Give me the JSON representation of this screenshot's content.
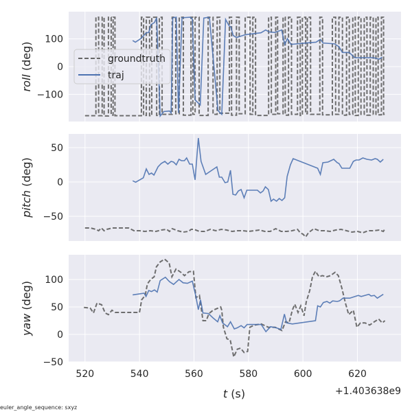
{
  "chart_data": [
    {
      "type": "line",
      "ylabel_var": "roll",
      "ylabel_unit": "(deg)",
      "xlim": [
        514,
        636
      ],
      "ylim": [
        -198,
        198
      ],
      "yticks": [
        -100,
        0,
        100
      ],
      "ytick_labels": [
        "−100",
        "0",
        "100"
      ],
      "grid": true,
      "legend": {
        "placement": "center-left",
        "entries": [
          "groundtruth",
          "traj"
        ]
      },
      "series": [
        {
          "name": "groundtruth",
          "style": "dashed",
          "color": "#666666",
          "drawstyle": "steps-post",
          "x": [
            520,
            524,
            525,
            526.3,
            527,
            528.6,
            529.6,
            530.3,
            531,
            540.7,
            541.5,
            542.5,
            543.7,
            544.5,
            546.3,
            547.3,
            548.3,
            552,
            553.3,
            554.6,
            556.1,
            558.9,
            559.6,
            560.4,
            561.9,
            565.2,
            567,
            568.5,
            569.5,
            573,
            573.8,
            575.6,
            576.6,
            578.8,
            580.6,
            581.6,
            582.6,
            587.4,
            588.4,
            590,
            590.7,
            592.7,
            593.5,
            594.7,
            595.8,
            598,
            599,
            599.8,
            601,
            601.6,
            602.8,
            606.2,
            607.2,
            610.8,
            612,
            613.2,
            614.5,
            616,
            617,
            618.3,
            619.2,
            620.3,
            621.3,
            622.5,
            623.5,
            624.7,
            625.8,
            626.8,
            627.6,
            628.8,
            629.6,
            630
          ],
          "y": [
            -177,
            178,
            -177,
            178,
            -178,
            178,
            -175,
            178,
            -177,
            178,
            -176,
            178,
            -177,
            178,
            -176,
            178,
            -172,
            178,
            -170,
            178,
            -175,
            178,
            -172,
            178,
            -176,
            178,
            -172,
            178,
            -168,
            178,
            -175,
            178,
            -170,
            178,
            -172,
            178,
            -176,
            178,
            -172,
            178,
            -170,
            178,
            -175,
            178,
            -172,
            178,
            -176,
            178,
            -170,
            178,
            -172,
            178,
            -174,
            178,
            -172,
            178,
            -175,
            178,
            -172,
            178,
            -176,
            178,
            -172,
            178,
            -175,
            178,
            -172,
            178,
            -174,
            178,
            -172,
            -172
          ]
        },
        {
          "name": "traj",
          "style": "solid",
          "color": "#4C72B0",
          "x": [
            537.5,
            538.5,
            540.5,
            542.5,
            543.4,
            544.2,
            545.5,
            546.3,
            547.6,
            548.9,
            551,
            551.6,
            552.2,
            553.5,
            554.3,
            555.6,
            558.6,
            559.4,
            560.4,
            562.3,
            563.6,
            565.3,
            565.7,
            568.8,
            570.2,
            571.6,
            572.9,
            573.5,
            574.4,
            575.6,
            577.9,
            578.8,
            584.6,
            586.3,
            587.6,
            589.7,
            592.2,
            593.3,
            594.3,
            595.6,
            599.8,
            604.8,
            606.4,
            607.4,
            611.6,
            613.2,
            614.5,
            617,
            619,
            625.9,
            628,
            629.1
          ],
          "y": [
            94,
            88,
            101,
            122,
            123,
            151,
            159,
            176,
            -178,
            -162,
            -160,
            -167,
            176,
            178,
            -167,
            176,
            178,
            172,
            -120,
            -138,
            175,
            178,
            174,
            -158,
            -172,
            170,
            147,
            143,
            112,
            105,
            112,
            115,
            122,
            132,
            125,
            123,
            132,
            80,
            101,
            80,
            84,
            88,
            98,
            85,
            82,
            72,
            51,
            51,
            32,
            32,
            27,
            34
          ]
        }
      ]
    },
    {
      "type": "line",
      "ylabel_var": "pitch",
      "ylabel_unit": "(deg)",
      "xlim": [
        514,
        636
      ],
      "ylim": [
        -86,
        70
      ],
      "yticks": [
        -50,
        0,
        50
      ],
      "ytick_labels": [
        "−50",
        "0",
        "50"
      ],
      "grid": true,
      "series": [
        {
          "name": "groundtruth",
          "style": "dashed",
          "color": "#666666",
          "x": [
            520,
            522,
            524,
            525,
            526,
            527,
            528,
            530,
            532,
            534,
            536,
            537,
            538,
            540,
            542,
            544,
            546,
            548,
            550,
            551,
            552,
            554,
            556,
            558,
            559,
            560,
            562,
            564,
            566,
            568,
            570,
            572,
            574,
            576,
            578,
            580,
            582,
            584,
            586,
            588,
            590,
            592,
            594,
            596,
            598,
            599,
            600,
            601,
            602,
            603,
            604,
            606,
            608,
            610,
            612,
            614,
            616,
            618,
            620,
            622,
            624,
            626,
            628,
            629.5,
            630
          ],
          "y": [
            -67,
            -67,
            -69,
            -71,
            -67,
            -71,
            -69,
            -67,
            -67,
            -67,
            -67,
            -69,
            -71,
            -71,
            -72,
            -71,
            -72,
            -70,
            -69,
            -72,
            -68,
            -71,
            -73,
            -72,
            -69,
            -69,
            -72,
            -72,
            -69,
            -71,
            -69,
            -70,
            -72,
            -71,
            -71,
            -72,
            -71,
            -70,
            -72,
            -72,
            -68,
            -72,
            -72,
            -71,
            -69,
            -74,
            -76,
            -80,
            -74,
            -71,
            -68,
            -71,
            -71,
            -72,
            -70,
            -69,
            -71,
            -73,
            -72,
            -74,
            -71,
            -71,
            -70,
            -72,
            -69
          ]
        },
        {
          "name": "traj",
          "style": "solid",
          "color": "#4C72B0",
          "x": [
            537.5,
            538.6,
            541.4,
            542.5,
            543.5,
            544.4,
            545.3,
            546.8,
            548,
            549.3,
            550.4,
            551.6,
            552.5,
            553.5,
            554.5,
            555.4,
            556.5,
            557.3,
            558.4,
            559.4,
            560.4,
            561.6,
            562.6,
            564.3,
            568.4,
            569.3,
            570.2,
            571.4,
            572.4,
            573.4,
            574.3,
            575.3,
            576.3,
            577.3,
            578.4,
            579.4,
            583.3,
            584.4,
            585.4,
            586.2,
            587.3,
            588.3,
            589.2,
            590.3,
            591.3,
            592.3,
            593.3,
            594.2,
            595.4,
            596.4,
            605.4,
            606.4,
            607.3,
            609.2,
            611.3,
            612.6,
            613.2,
            614.3,
            617.2,
            618.5,
            619.5,
            620.6,
            622,
            623.5,
            625.2,
            626.5,
            627.3,
            628.4,
            629.5
          ],
          "y": [
            1.7,
            -0.3,
            6,
            19,
            11,
            13,
            10,
            22,
            27,
            30,
            26,
            30,
            29,
            25,
            33,
            31,
            31,
            35,
            26,
            26,
            3,
            64,
            30,
            11,
            22,
            7,
            7,
            -1,
            0,
            17,
            -18,
            -19,
            -13,
            -11,
            -23,
            -12,
            -12,
            -16,
            -13,
            -7,
            -11,
            -28,
            -25,
            -28,
            -24,
            -27,
            -23,
            8,
            25,
            34,
            20,
            11,
            28,
            29,
            33,
            28,
            27,
            20,
            20,
            30,
            32,
            32,
            35,
            33,
            32,
            34,
            33,
            29,
            33
          ]
        }
      ]
    },
    {
      "type": "line",
      "ylabel_var": "yaw",
      "ylabel_unit": "(deg)",
      "xlabel_var": "t",
      "xlabel_unit": "(s)",
      "x_offset_label": "+1.403638e9",
      "xlim": [
        514,
        636
      ],
      "ylim": [
        -50,
        145
      ],
      "xticks": [
        520,
        540,
        560,
        580,
        600,
        620
      ],
      "xtick_labels": [
        "520",
        "540",
        "560",
        "580",
        "600",
        "620"
      ],
      "yticks": [
        -50,
        0,
        50,
        100
      ],
      "ytick_labels": [
        "−50",
        "0",
        "50",
        "100"
      ],
      "grid": true,
      "series": [
        {
          "name": "groundtruth",
          "style": "dashed",
          "color": "#666666",
          "x": [
            519.6,
            521.9,
            523.1,
            524.4,
            526.1,
            527.4,
            528.6,
            529.9,
            531.1,
            540,
            540.8,
            542.1,
            542.9,
            544.1,
            545.4,
            546.2,
            547.6,
            549.2,
            550.9,
            551.9,
            553.4,
            555.2,
            556.5,
            558.1,
            559.8,
            560.7,
            562,
            563.3,
            564.5,
            565.5,
            567,
            569.8,
            570.2,
            570.8,
            572.1,
            573.3,
            574.6,
            575.9,
            577.1,
            578.4,
            579.7,
            580.5,
            582.2,
            584.7,
            587.3,
            589.8,
            592.3,
            593.6,
            594.9,
            596.1,
            597,
            598.2,
            599.2,
            600.4,
            601.2,
            602.5,
            603.5,
            604.6,
            605.9,
            607.1,
            608.8,
            610.1,
            611.8,
            613,
            614.3,
            615.6,
            616.8,
            618.5,
            619.8,
            621.1,
            622.8,
            624.5,
            626.2,
            627.8,
            629.1,
            630.1
          ],
          "y": [
            49,
            48,
            39,
            57,
            54,
            39,
            36,
            44,
            40,
            40,
            63,
            71,
            92,
            100,
            105,
            123,
            132,
            137,
            130,
            105,
            119,
            113,
            107,
            114,
            115,
            67,
            71,
            25,
            25,
            38,
            44,
            50,
            44,
            13,
            -8,
            -10,
            -41,
            -27,
            -25,
            -33,
            -31,
            13,
            17,
            19,
            13,
            13,
            7,
            23,
            21,
            44,
            55,
            40,
            52,
            34,
            59,
            80,
            105,
            115,
            105,
            107,
            105,
            107,
            113,
            107,
            84,
            57,
            36,
            44,
            13,
            21,
            21,
            17,
            23,
            28,
            21,
            25
          ]
        },
        {
          "name": "traj",
          "style": "solid",
          "color": "#4C72B0",
          "x": [
            537.5,
            541.7,
            542.4,
            543.4,
            544.4,
            545.5,
            546.5,
            547.6,
            549.5,
            551,
            552.5,
            554.5,
            556,
            557.6,
            559.4,
            560.7,
            561.6,
            562.4,
            563.3,
            565.3,
            567,
            568.7,
            569.5,
            570.5,
            572.3,
            573.4,
            574.8,
            575.9,
            577.3,
            578.4,
            579.5,
            584.7,
            586.4,
            588.1,
            590.2,
            591.9,
            593.2,
            594,
            596.1,
            604.6,
            605.4,
            606.4,
            607.5,
            608.8,
            609.9,
            610.9,
            612.6,
            613.4,
            614.7,
            617.2,
            620.3,
            621.4,
            624.2,
            625,
            626.2,
            627.3,
            629.5
          ],
          "y": [
            72,
            75,
            69,
            80,
            78,
            81,
            77,
            98,
            104,
            96,
            91,
            100,
            94,
            93,
            97,
            69,
            45,
            63,
            39,
            38,
            30,
            23,
            34,
            21,
            14,
            23,
            10,
            12,
            16,
            12,
            18,
            18,
            5,
            14,
            12,
            9,
            37,
            21,
            19,
            25,
            52,
            50,
            58,
            60,
            57,
            61,
            60,
            61,
            66,
            66,
            71,
            69,
            73,
            70,
            71,
            66,
            73
          ]
        }
      ]
    }
  ],
  "footer": "euler_angle_sequence: sxyz"
}
